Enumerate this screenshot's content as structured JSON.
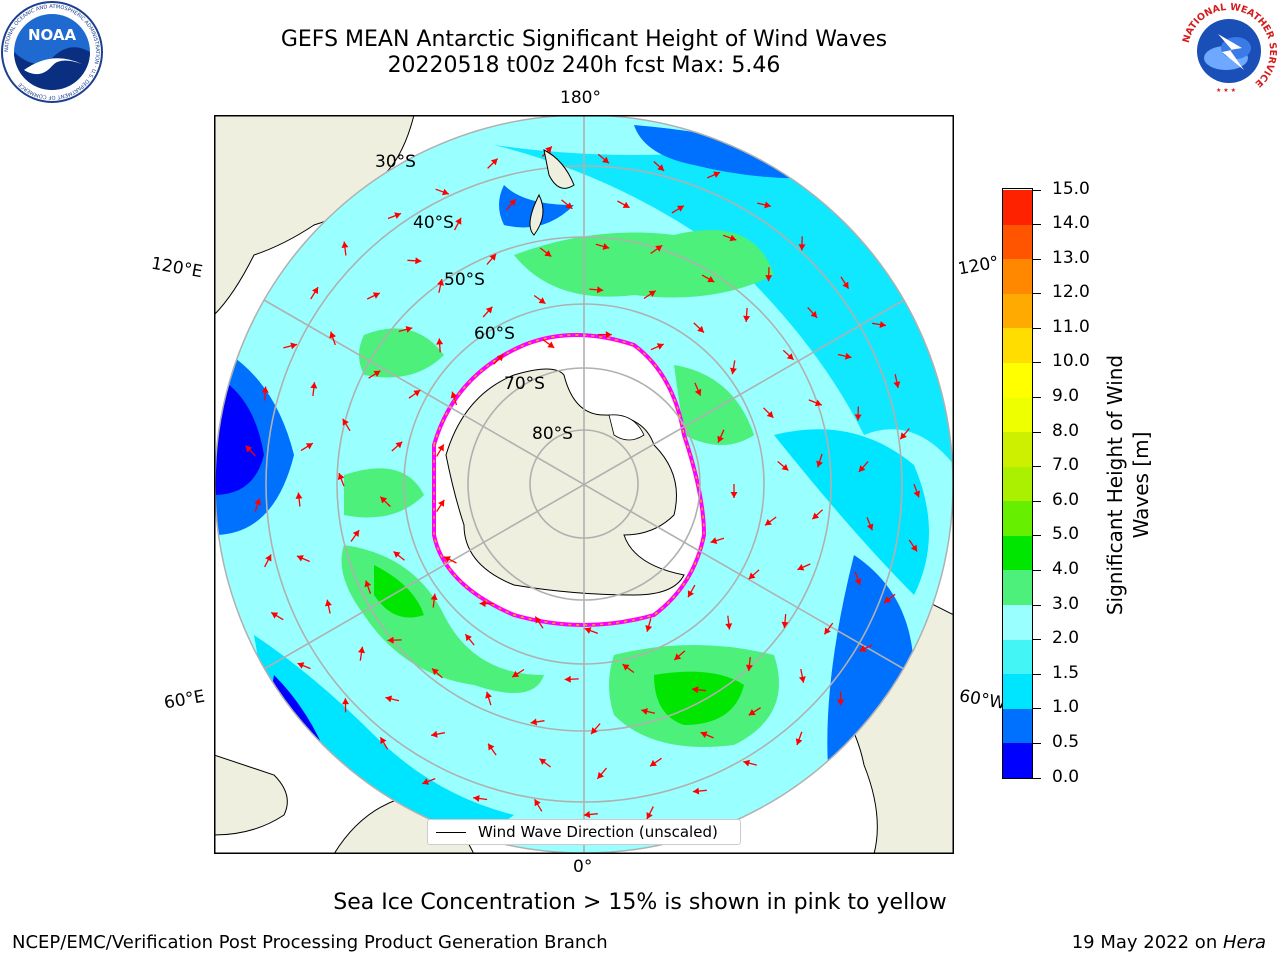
{
  "title": {
    "line1": "GEFS MEAN Antarctic Significant Height of Wind Waves",
    "line2": "20220518 t00z 240h fcst   Max: 5.46"
  },
  "map": {
    "projection": "south-polar-stereographic",
    "lon_labels": [
      "180°",
      "120°E",
      "120°",
      "60°E",
      "60°W",
      "0°"
    ],
    "lat_labels": [
      "30°S",
      "40°S",
      "50°S",
      "60°S",
      "70°S",
      "80°S"
    ],
    "legend": "Wind Wave Direction (unscaled)",
    "arrow_color": "#ff0000",
    "land_color": "#efefdf",
    "ice_color": "#ffffff",
    "ice_edge_colors": [
      "#ff00ff",
      "#ffaa00"
    ],
    "grid_color": "#b0b0b0"
  },
  "colorbar": {
    "title": "Significant Height of Wind Waves [m]",
    "ticks": [
      "15.0",
      "14.0",
      "13.0",
      "12.0",
      "11.0",
      "10.0",
      "9.0",
      "8.0",
      "7.0",
      "6.0",
      "5.0",
      "4.0",
      "3.0",
      "2.0",
      "1.5",
      "1.0",
      "0.5",
      "0.0"
    ],
    "colors": [
      "#0000ff",
      "#0070ff",
      "#00e5ff",
      "#44f5f5",
      "#99ffff",
      "#4cf07a",
      "#00e600",
      "#66f000",
      "#aaf000",
      "#ccf000",
      "#eeff00",
      "#ffff00",
      "#ffdd00",
      "#ffaa00",
      "#ff8800",
      "#ff5500",
      "#ff2200"
    ]
  },
  "footnote": "Sea Ice Concentration > 15% is shown in pink to yellow",
  "footer": {
    "left": "NCEP/EMC/Verification Post Processing Product Generation Branch",
    "right_date": "19 May 2022 on ",
    "right_host": "Hera"
  },
  "logos": {
    "noaa_text": "NOAA",
    "noaa_ring": "NATIONAL OCEANIC AND ATMOSPHERIC ADMINISTRATION · U.S. DEPARTMENT OF COMMERCE",
    "nws_ring": "NATIONAL WEATHER SERVICE"
  }
}
